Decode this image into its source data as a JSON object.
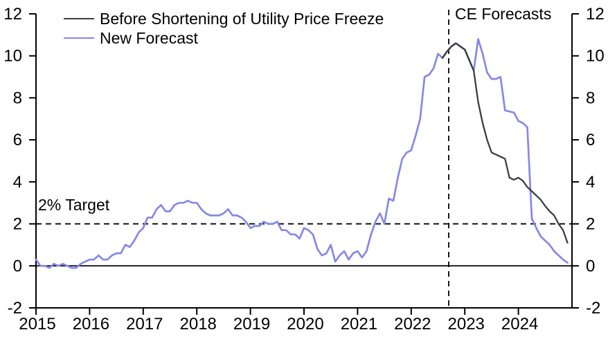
{
  "chart_data": {
    "type": "line",
    "title": "",
    "xlabel": "",
    "ylabel": "",
    "xlim": [
      2015,
      2025
    ],
    "ylim": [
      -2,
      12
    ],
    "x_ticks": [
      2015,
      2016,
      2017,
      2018,
      2019,
      2020,
      2021,
      2022,
      2023,
      2024
    ],
    "y_ticks": [
      -2,
      0,
      2,
      4,
      6,
      8,
      10,
      12
    ],
    "y_axis_sides": [
      "left",
      "right"
    ],
    "grid": false,
    "legend_position": "top-left",
    "frequency": "monthly",
    "series": [
      {
        "name": "Before Shortening of Utility Price Freeze",
        "color": "#3d3d3d",
        "start": {
          "year": 2022,
          "month": 8
        },
        "values": [
          9.9,
          10.2,
          10.45,
          10.6,
          10.45,
          10.3,
          9.8,
          9.3,
          7.8,
          6.8,
          6.0,
          5.4,
          5.3,
          5.2,
          5.1,
          4.2,
          4.1,
          4.2,
          4.05,
          3.75,
          3.55,
          3.35,
          3.15,
          2.85,
          2.6,
          2.4,
          2.0,
          1.7,
          1.1
        ]
      },
      {
        "name": "New Forecast",
        "color": "#8787e6",
        "start": {
          "year": 2015,
          "month": 1
        },
        "values": [
          0.3,
          0.0,
          0.0,
          -0.1,
          0.1,
          0.0,
          0.1,
          0.0,
          -0.1,
          -0.1,
          0.1,
          0.2,
          0.3,
          0.3,
          0.5,
          0.3,
          0.3,
          0.5,
          0.6,
          0.6,
          1.0,
          0.9,
          1.2,
          1.6,
          1.8,
          2.3,
          2.3,
          2.7,
          2.9,
          2.6,
          2.6,
          2.9,
          3.0,
          3.0,
          3.1,
          3.0,
          3.0,
          2.7,
          2.5,
          2.4,
          2.4,
          2.4,
          2.5,
          2.7,
          2.4,
          2.4,
          2.3,
          2.1,
          1.8,
          1.9,
          1.9,
          2.1,
          2.0,
          2.0,
          2.1,
          1.7,
          1.7,
          1.5,
          1.5,
          1.3,
          1.8,
          1.7,
          1.5,
          0.8,
          0.5,
          0.6,
          1.0,
          0.2,
          0.5,
          0.7,
          0.3,
          0.6,
          0.7,
          0.4,
          0.7,
          1.5,
          2.1,
          2.5,
          2.0,
          3.2,
          3.1,
          4.2,
          5.1,
          5.4,
          5.5,
          6.2,
          7.0,
          9.0,
          9.1,
          9.4,
          10.1,
          9.9,
          10.2,
          10.45,
          10.6,
          10.45,
          10.3,
          9.8,
          9.3,
          10.8,
          10.1,
          9.2,
          8.9,
          8.9,
          9.0,
          7.4,
          7.35,
          7.3,
          6.9,
          6.8,
          6.6,
          2.25,
          1.8,
          1.4,
          1.2,
          1.0,
          0.7,
          0.5,
          0.3,
          0.15
        ]
      }
    ],
    "annotations": {
      "target_line": {
        "y": 2,
        "label": "2% Target",
        "style": "dashed",
        "color": "#000000"
      },
      "forecast_start_line": {
        "x": 2022.7,
        "label": "CE Forecasts",
        "style": "dashed",
        "color": "#000000"
      },
      "zero_line": {
        "y": 0,
        "style": "solid",
        "color": "#000000"
      }
    }
  }
}
